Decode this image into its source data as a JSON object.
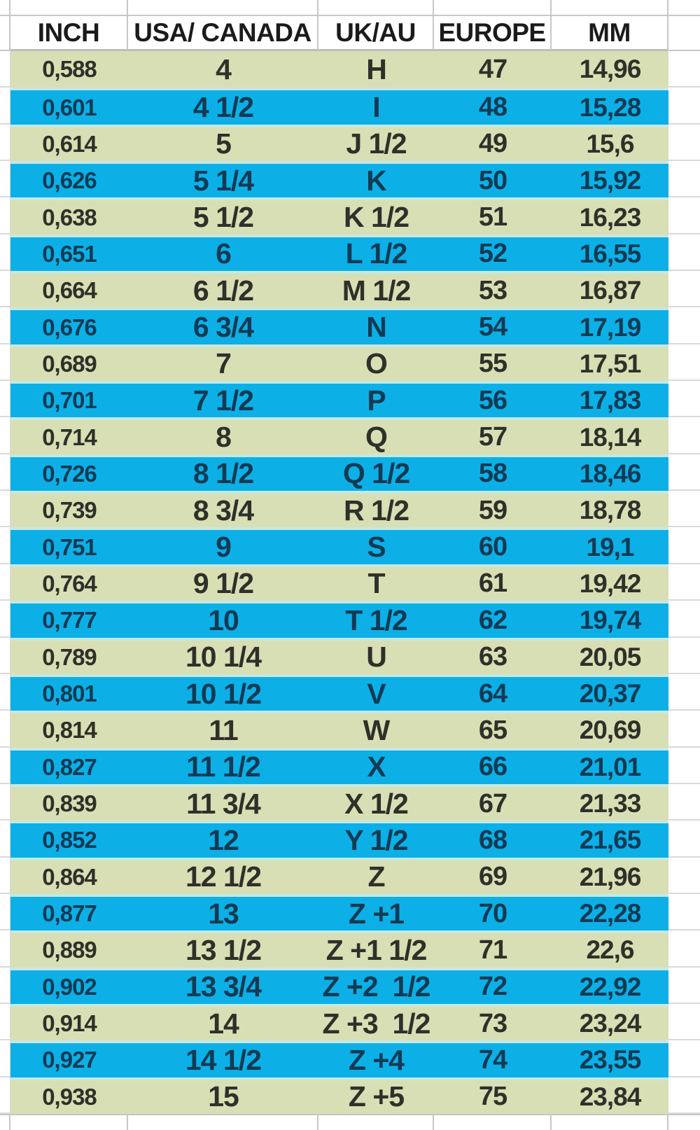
{
  "sheet": {
    "title": "ring-size-conversion-table",
    "columns": [
      "INCH",
      "USA/ CANADA",
      "UK/AU",
      "EUROPE",
      "MM"
    ],
    "rows": [
      [
        "0,588",
        "4",
        "H",
        "47",
        "14,96"
      ],
      [
        "0,601",
        "4 1/2",
        "I",
        "48",
        "15,28"
      ],
      [
        "0,614",
        "5",
        "J 1/2",
        "49",
        "15,6"
      ],
      [
        "0,626",
        "5 1/4",
        "K",
        "50",
        "15,92"
      ],
      [
        "0,638",
        "5 1/2",
        "K 1/2",
        "51",
        "16,23"
      ],
      [
        "0,651",
        "6",
        "L 1/2",
        "52",
        "16,55"
      ],
      [
        "0,664",
        "6 1/2",
        "M 1/2",
        "53",
        "16,87"
      ],
      [
        "0,676",
        "6 3/4",
        "N",
        "54",
        "17,19"
      ],
      [
        "0,689",
        "7",
        "O",
        "55",
        "17,51"
      ],
      [
        "0,701",
        "7 1/2",
        "P",
        "56",
        "17,83"
      ],
      [
        "0,714",
        "8",
        "Q",
        "57",
        "18,14"
      ],
      [
        "0,726",
        "8 1/2",
        "Q 1/2",
        "58",
        "18,46"
      ],
      [
        "0,739",
        "8 3/4",
        "R 1/2",
        "59",
        "18,78"
      ],
      [
        "0,751",
        "9",
        "S",
        "60",
        "19,1"
      ],
      [
        "0,764",
        "9 1/2",
        "T",
        "61",
        "19,42"
      ],
      [
        "0,777",
        "10",
        "T 1/2",
        "62",
        "19,74"
      ],
      [
        "0,789",
        "10 1/4",
        "U",
        "63",
        "20,05"
      ],
      [
        "0,801",
        "10 1/2",
        "V",
        "64",
        "20,37"
      ],
      [
        "0,814",
        "11",
        "W",
        "65",
        "20,69"
      ],
      [
        "0,827",
        "11 1/2",
        "X",
        "66",
        "21,01"
      ],
      [
        "0,839",
        "11 3/4",
        "X 1/2",
        "67",
        "21,33"
      ],
      [
        "0,852",
        "12",
        "Y 1/2",
        "68",
        "21,65"
      ],
      [
        "0,864",
        "12 1/2",
        "Z",
        "69",
        "21,96"
      ],
      [
        "0,877",
        "13",
        "Z +1",
        "70",
        "22,28"
      ],
      [
        "0,889",
        "13 1/2",
        "Z +1 1/2",
        "71",
        "22,6"
      ],
      [
        "0,902",
        "13 3/4",
        "Z +2  1/2",
        "72",
        "22,92"
      ],
      [
        "0,914",
        "14",
        "Z +3  1/2",
        "73",
        "23,24"
      ],
      [
        "0,927",
        "14 1/2",
        "Z +4",
        "74",
        "23,55"
      ],
      [
        "0,938",
        "15",
        "Z +5",
        "75",
        "23,84"
      ]
    ]
  },
  "colors": {
    "row_green": "#d9dfb4",
    "row_cyan": "#0cb0e6",
    "text_green_row": "#30302a",
    "text_cyan_row": "#123a54",
    "header_text": "#1b1b1b",
    "gridline": "#c7c7c7",
    "separator": "#c6e8e2"
  }
}
